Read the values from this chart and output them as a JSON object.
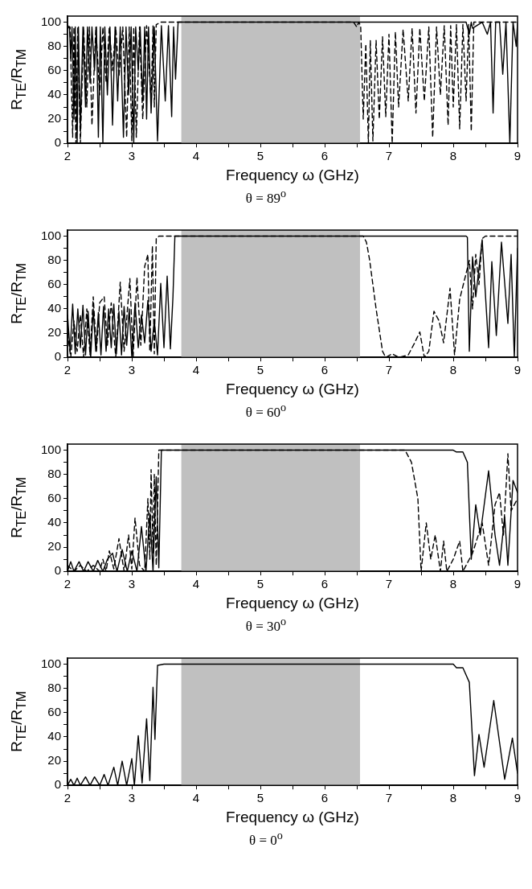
{
  "chart_data": [
    {
      "type": "line",
      "xlabel": "Frequency ω (GHz)",
      "ylabel": "R$_{TE}$/R$_{TM}$",
      "annotations": [
        "θ = 89$^{o}$"
      ],
      "xlim": [
        2,
        9
      ],
      "ylim": [
        0,
        105
      ],
      "xticks": [
        2,
        {
          "value": 2.5,
          "label": null
        },
        3,
        {
          "value": 3.5,
          "label": null
        },
        4,
        {
          "value": 4.5,
          "label": null
        },
        5,
        {
          "value": 5.5,
          "label": null
        },
        6,
        {
          "value": 6.5,
          "label": null
        },
        7,
        {
          "value": 7.5,
          "label": null
        },
        8,
        {
          "value": 8.5,
          "label": null
        },
        9
      ],
      "yticks": [
        0,
        {
          "value": 10,
          "label": null
        },
        20,
        {
          "value": 30,
          "label": null
        },
        40,
        {
          "value": 50,
          "label": null
        },
        60,
        {
          "value": 70,
          "label": null
        },
        80,
        {
          "value": 90,
          "label": null
        },
        100
      ],
      "grid": false,
      "legend": false,
      "bands": [
        {
          "axis": "x",
          "from": 3.77,
          "to": 6.55,
          "color": "#c0c0c0"
        }
      ],
      "series": [
        {
          "color": "#000000",
          "line_style": "solid",
          "x": [
            2,
            2.03,
            2.05,
            2.07,
            2.1,
            2.12,
            2.15,
            2.17,
            2.2,
            2.24,
            2.28,
            2.31,
            2.35,
            2.38,
            2.42,
            2.45,
            2.48,
            2.51,
            2.55,
            2.58,
            2.62,
            2.66,
            2.7,
            2.74,
            2.78,
            2.82,
            2.87,
            2.91,
            2.95,
            2.99,
            3.03,
            3.06,
            3.1,
            3.13,
            3.17,
            3.2,
            3.23,
            3.26,
            3.3,
            3.35,
            3.4,
            3.46,
            3.52,
            3.57,
            3.62,
            3.65,
            3.68,
            3.72,
            3.8,
            8.2,
            8.25,
            8.28,
            8.3,
            8.45,
            8.53,
            8.58,
            8.62,
            8.66,
            8.72,
            8.77,
            8.82,
            8.88,
            8.93,
            8.98,
            9
          ],
          "values": [
            95,
            96,
            70,
            96,
            20,
            96,
            0,
            96,
            10,
            96,
            30,
            96,
            50,
            96,
            60,
            96,
            5,
            96,
            0,
            96,
            40,
            96,
            15,
            96,
            35,
            96,
            5,
            96,
            40,
            96,
            0,
            96,
            60,
            96,
            35,
            96,
            20,
            96,
            25,
            96,
            2,
            97,
            35,
            97,
            22,
            96,
            53,
            100,
            100,
            100,
            90,
            100,
            95,
            100,
            90,
            100,
            25,
            100,
            100,
            57,
            100,
            0,
            100,
            80,
            100
          ]
        },
        {
          "color": "#000000",
          "line_style": "dashed",
          "x": [
            2,
            2.04,
            2.08,
            2.1,
            2.13,
            2.16,
            2.2,
            2.25,
            2.3,
            2.34,
            2.38,
            2.44,
            2.5,
            2.55,
            2.6,
            2.65,
            2.7,
            2.75,
            2.8,
            2.86,
            2.92,
            2.96,
            3,
            3.03,
            3.07,
            3.12,
            3.17,
            3.23,
            3.3,
            3.33,
            3.35,
            3.38,
            3.45,
            6.45,
            6.5,
            6.53,
            6.56,
            6.6,
            6.64,
            6.68,
            6.71,
            6.75,
            6.8,
            6.85,
            6.9,
            6.95,
            7,
            7.05,
            7.1,
            7.15,
            7.22,
            7.3,
            7.36,
            7.42,
            7.48,
            7.55,
            7.62,
            7.68,
            7.74,
            7.8,
            7.86,
            7.92,
            7.96,
            8,
            8.05,
            8.1,
            8.15,
            8.2,
            8.24,
            8.28,
            8.32,
            8.4,
            9
          ],
          "values": [
            97,
            96,
            5,
            96,
            0,
            96,
            0,
            96,
            30,
            96,
            15,
            96,
            40,
            96,
            50,
            96,
            60,
            96,
            55,
            96,
            5,
            96,
            2,
            96,
            5,
            96,
            20,
            97,
            35,
            97,
            30,
            98,
            100,
            100,
            96,
            100,
            97,
            20,
            82,
            0,
            85,
            2,
            85,
            20,
            88,
            22,
            90,
            0,
            92,
            30,
            94,
            35,
            95,
            25,
            95,
            35,
            96,
            5,
            96,
            40,
            97,
            15,
            97,
            30,
            98,
            12,
            98,
            35,
            98,
            10,
            100,
            100,
            100
          ]
        }
      ]
    },
    {
      "type": "line",
      "xlabel": "Frequency ω (GHz)",
      "ylabel": "R$_{TE}$/R$_{TM}$",
      "annotations": [
        "θ = 60$^{o}$"
      ],
      "xlim": [
        2,
        9
      ],
      "ylim": [
        0,
        105
      ],
      "xticks": [
        2,
        {
          "value": 2.5,
          "label": null
        },
        3,
        {
          "value": 3.5,
          "label": null
        },
        4,
        {
          "value": 4.5,
          "label": null
        },
        5,
        {
          "value": 5.5,
          "label": null
        },
        6,
        {
          "value": 6.5,
          "label": null
        },
        7,
        {
          "value": 7.5,
          "label": null
        },
        8,
        {
          "value": 8.5,
          "label": null
        },
        9
      ],
      "yticks": [
        0,
        {
          "value": 10,
          "label": null
        },
        20,
        {
          "value": 30,
          "label": null
        },
        40,
        {
          "value": 50,
          "label": null
        },
        60,
        {
          "value": 70,
          "label": null
        },
        80,
        {
          "value": 90,
          "label": null
        },
        100
      ],
      "grid": false,
      "legend": false,
      "bands": [
        {
          "axis": "x",
          "from": 3.77,
          "to": 6.55,
          "color": "#c0c0c0"
        }
      ],
      "series": [
        {
          "color": "#000000",
          "line_style": "solid",
          "x": [
            2,
            2.04,
            2.08,
            2.12,
            2.16,
            2.2,
            2.24,
            2.28,
            2.32,
            2.36,
            2.4,
            2.44,
            2.48,
            2.52,
            2.56,
            2.6,
            2.64,
            2.68,
            2.72,
            2.76,
            2.8,
            2.84,
            2.88,
            2.92,
            2.96,
            3,
            3.05,
            3.1,
            3.15,
            3.2,
            3.25,
            3.3,
            3.35,
            3.4,
            3.45,
            3.5,
            3.55,
            3.6,
            3.64,
            3.67,
            3.75,
            8.2,
            8.22,
            8.25,
            8.3,
            8.35,
            8.45,
            8.55,
            8.6,
            8.67,
            8.75,
            8.85,
            8.9,
            8.95,
            9
          ],
          "values": [
            35,
            5,
            44,
            3,
            40,
            8,
            43,
            2,
            38,
            0,
            40,
            5,
            37,
            2,
            42,
            5,
            40,
            8,
            44,
            3,
            38,
            2,
            42,
            10,
            40,
            0,
            45,
            8,
            35,
            12,
            47,
            5,
            30,
            2,
            61,
            8,
            67,
            7,
            50,
            100,
            100,
            100,
            99,
            5,
            83,
            50,
            97,
            8,
            79,
            18,
            95,
            28,
            85,
            0,
            90
          ]
        },
        {
          "color": "#000000",
          "line_style": "dashed",
          "x": [
            2,
            2.05,
            2.1,
            2.15,
            2.2,
            2.25,
            2.3,
            2.35,
            2.4,
            2.45,
            2.5,
            2.57,
            2.62,
            2.68,
            2.75,
            2.82,
            2.88,
            2.97,
            3.02,
            3.08,
            3.14,
            3.2,
            3.25,
            3.28,
            3.32,
            3.35,
            3.38,
            3.42,
            3.5,
            6.6,
            6.65,
            6.7,
            6.8,
            6.9,
            6.95,
            7.05,
            7.15,
            7.3,
            7.4,
            7.48,
            7.55,
            7.62,
            7.7,
            7.78,
            7.85,
            7.95,
            8.02,
            8.1,
            8.18,
            8.25,
            8.3,
            8.35,
            8.4,
            8.45,
            8.5,
            9
          ],
          "values": [
            20,
            0,
            30,
            5,
            35,
            0,
            40,
            2,
            50,
            5,
            45,
            50,
            10,
            45,
            0,
            62,
            5,
            65,
            0,
            66,
            10,
            75,
            85,
            5,
            92,
            3,
            98,
            100,
            100,
            100,
            95,
            80,
            40,
            5,
            0,
            3,
            0,
            2,
            12,
            21,
            0,
            5,
            38,
            30,
            12,
            57,
            2,
            48,
            65,
            80,
            40,
            85,
            60,
            98,
            100,
            100
          ]
        }
      ]
    },
    {
      "type": "line",
      "xlabel": "Frequency ω (GHz)",
      "ylabel": "R$_{TE}$/R$_{TM}$",
      "annotations": [
        "θ = 30$^{o}$"
      ],
      "xlim": [
        2,
        9
      ],
      "ylim": [
        0,
        105
      ],
      "xticks": [
        2,
        {
          "value": 2.5,
          "label": null
        },
        3,
        {
          "value": 3.5,
          "label": null
        },
        4,
        {
          "value": 4.5,
          "label": null
        },
        5,
        {
          "value": 5.5,
          "label": null
        },
        6,
        {
          "value": 6.5,
          "label": null
        },
        7,
        {
          "value": 7.5,
          "label": null
        },
        8,
        {
          "value": 8.5,
          "label": null
        },
        9
      ],
      "yticks": [
        0,
        {
          "value": 10,
          "label": null
        },
        20,
        {
          "value": 30,
          "label": null
        },
        40,
        {
          "value": 50,
          "label": null
        },
        60,
        {
          "value": 70,
          "label": null
        },
        80,
        {
          "value": 90,
          "label": null
        },
        100
      ],
      "grid": false,
      "legend": false,
      "bands": [
        {
          "axis": "x",
          "from": 3.77,
          "to": 6.55,
          "color": "#c0c0c0"
        }
      ],
      "series": [
        {
          "color": "#000000",
          "line_style": "solid",
          "x": [
            2,
            2.05,
            2.1,
            2.18,
            2.25,
            2.32,
            2.4,
            2.47,
            2.55,
            2.62,
            2.7,
            2.77,
            2.85,
            2.93,
            3,
            3.08,
            3.15,
            3.22,
            3.28,
            3.33,
            3.38,
            3.42,
            3.46,
            3.55,
            8,
            8.05,
            8.15,
            8.22,
            8.28,
            8.35,
            8.42,
            8.55,
            8.65,
            8.72,
            8.8,
            8.85,
            8.93,
            9
          ],
          "values": [
            0,
            8,
            0,
            8,
            0,
            8,
            0,
            9,
            0,
            10,
            15,
            0,
            18,
            0,
            17,
            0,
            37,
            0,
            48,
            0,
            78,
            3,
            100,
            100,
            100,
            98.5,
            98.5,
            90,
            10,
            55,
            30,
            83,
            30,
            5,
            45,
            5,
            75,
            65
          ]
        },
        {
          "color": "#000000",
          "line_style": "dashed",
          "x": [
            2,
            2.1,
            2.2,
            2.3,
            2.4,
            2.5,
            2.55,
            2.6,
            2.65,
            2.72,
            2.8,
            2.88,
            2.95,
            3,
            3.05,
            3.12,
            3.2,
            3.25,
            3.28,
            3.3,
            3.33,
            3.35,
            3.38,
            3.42,
            7.25,
            7.35,
            7.45,
            7.5,
            7.58,
            7.65,
            7.72,
            7.8,
            7.85,
            7.9,
            8,
            8.1,
            8.15,
            8.3,
            8.45,
            8.55,
            8.65,
            8.72,
            8.78,
            8.85,
            8.9,
            9
          ],
          "values": [
            5,
            0,
            5,
            0,
            5,
            0,
            10,
            0,
            17,
            2,
            27,
            0,
            30,
            2,
            44,
            5,
            0,
            60,
            10,
            84,
            15,
            80,
            5,
            100,
            100,
            90,
            60,
            0,
            40,
            10,
            30,
            0,
            25,
            0,
            10,
            25,
            0,
            15,
            40,
            5,
            55,
            65,
            30,
            97,
            50,
            60
          ]
        }
      ]
    },
    {
      "type": "line",
      "xlabel": "Frequency ω (GHz)",
      "ylabel": "R$_{TE}$/R$_{TM}$",
      "annotations": [
        "θ = 0$^{o}$"
      ],
      "xlim": [
        2,
        9
      ],
      "ylim": [
        0,
        105
      ],
      "xticks": [
        2,
        {
          "value": 2.5,
          "label": null
        },
        3,
        {
          "value": 3.5,
          "label": null
        },
        4,
        {
          "value": 4.5,
          "label": null
        },
        5,
        {
          "value": 5.5,
          "label": null
        },
        6,
        {
          "value": 6.5,
          "label": null
        },
        7,
        {
          "value": 7.5,
          "label": null
        },
        8,
        {
          "value": 8.5,
          "label": null
        },
        9
      ],
      "yticks": [
        0,
        {
          "value": 10,
          "label": null
        },
        20,
        {
          "value": 30,
          "label": null
        },
        40,
        {
          "value": 50,
          "label": null
        },
        60,
        {
          "value": 70,
          "label": null
        },
        80,
        {
          "value": 90,
          "label": null
        },
        100
      ],
      "grid": false,
      "legend": false,
      "bands": [
        {
          "axis": "x",
          "from": 3.77,
          "to": 6.55,
          "color": "#c0c0c0"
        }
      ],
      "series": [
        {
          "color": "#000000",
          "line_style": "solid",
          "x": [
            2,
            2.05,
            2.1,
            2.15,
            2.2,
            2.28,
            2.35,
            2.42,
            2.5,
            2.57,
            2.63,
            2.72,
            2.78,
            2.85,
            2.92,
            3,
            3.04,
            3.1,
            3.16,
            3.23,
            3.28,
            3.33,
            3.36,
            3.4,
            3.5,
            8,
            8.05,
            8.15,
            8.25,
            8.33,
            8.4,
            8.48,
            8.63,
            8.8,
            8.92,
            9
          ],
          "values": [
            0,
            5,
            0,
            6,
            0,
            7,
            0,
            7,
            0,
            9,
            0,
            15,
            0,
            20,
            0,
            22,
            0,
            41,
            2,
            55,
            4,
            81,
            38,
            99,
            100,
            100,
            97,
            97,
            85,
            8,
            42,
            15,
            70,
            5,
            39,
            10
          ]
        }
      ]
    }
  ]
}
